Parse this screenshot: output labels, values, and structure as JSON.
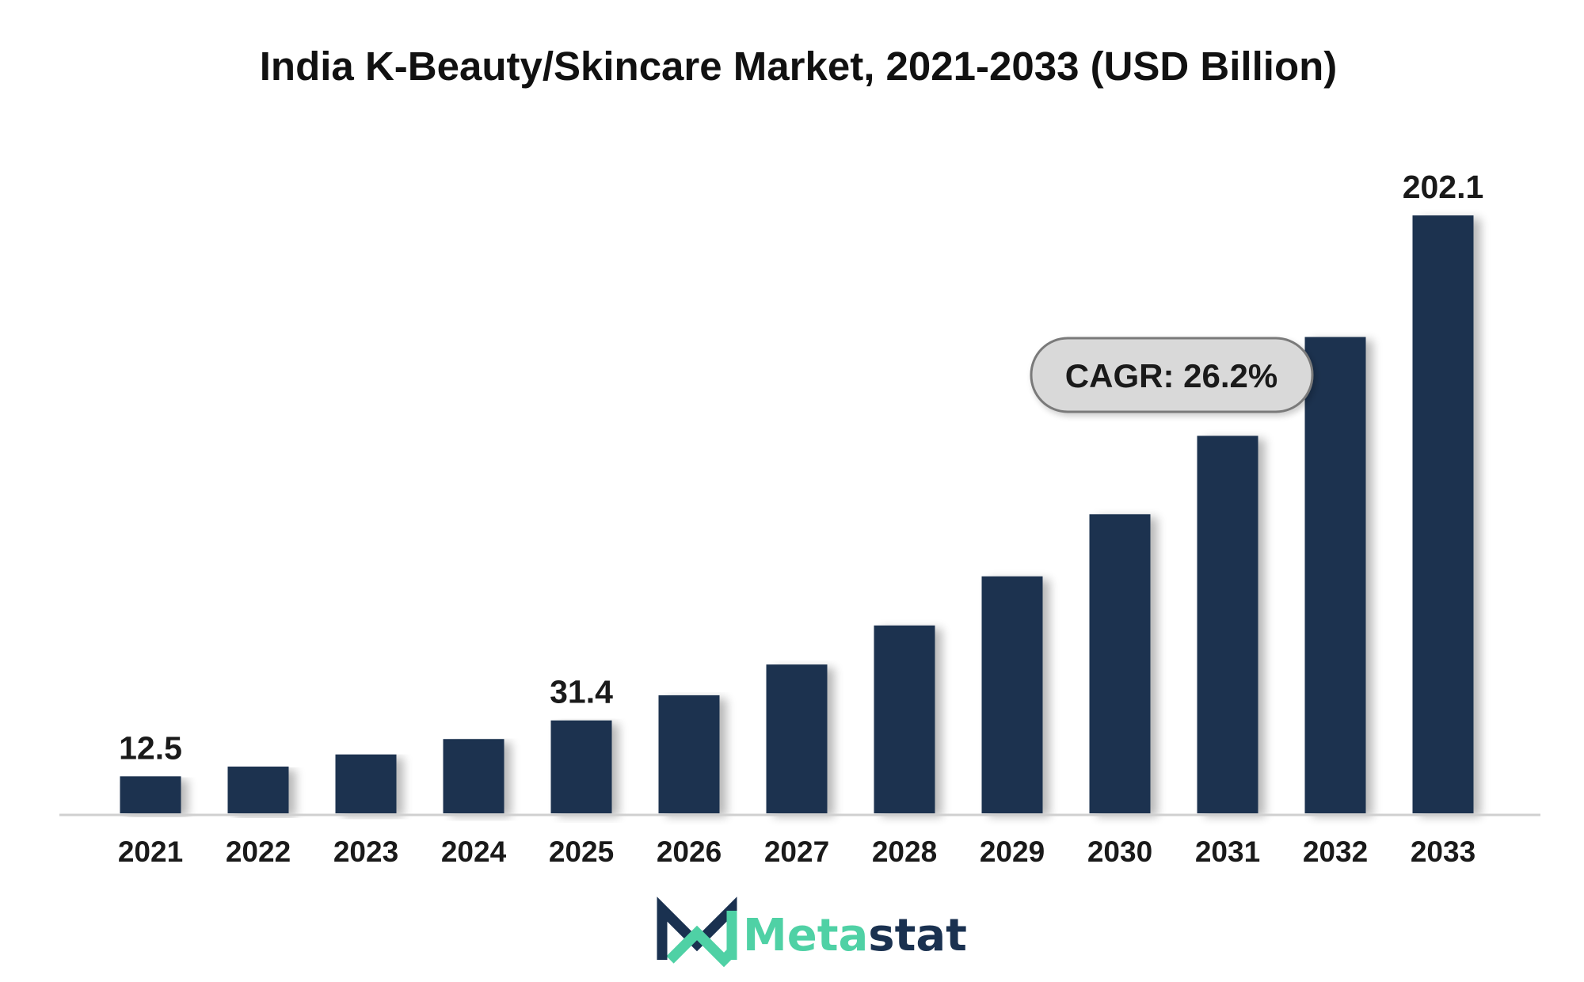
{
  "chart_data": {
    "type": "bar",
    "title": "India K-Beauty/Skincare Market, 2021-2033 (USD Billion)",
    "categories": [
      "2021",
      "2022",
      "2023",
      "2024",
      "2025",
      "2026",
      "2027",
      "2028",
      "2029",
      "2030",
      "2031",
      "2032",
      "2033"
    ],
    "values": [
      12.5,
      15.8,
      19.9,
      25.1,
      31.4,
      39.9,
      50.3,
      63.5,
      80.1,
      101.1,
      127.6,
      161.0,
      202.1
    ],
    "data_labels": [
      {
        "category": "2021",
        "text": "12.5"
      },
      {
        "category": "2025",
        "text": "31.4"
      },
      {
        "category": "2033",
        "text": "202.1"
      }
    ],
    "annotation": "CAGR: 26.2%",
    "ylim": [
      0,
      202.1
    ],
    "grid": false,
    "bar_color": "#1a3150",
    "axis_color": "#d0d0d0"
  },
  "brand": {
    "prefix": "Meta",
    "suffix": "stat",
    "prefix_color": "#4fd1a5",
    "suffix_color": "#1a3150"
  }
}
